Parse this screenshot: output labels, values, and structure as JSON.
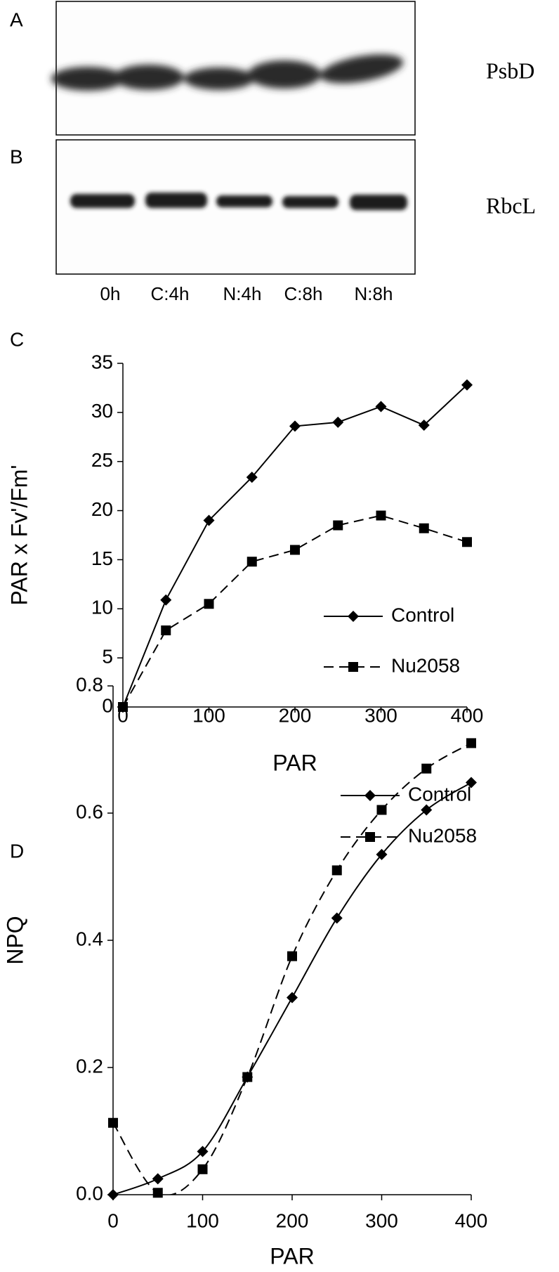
{
  "blots": {
    "panels": [
      {
        "label": "A",
        "protein": "PsbD"
      },
      {
        "label": "B",
        "protein": "RbcL"
      }
    ],
    "lanes": [
      "0h",
      "C:4h",
      "N:4h",
      "C:8h",
      "N:8h"
    ]
  },
  "chart_data": [
    {
      "type": "line",
      "panel": "C",
      "y_label": "PAR x Fv'/Fm'",
      "x_label": "PAR",
      "x": [
        0,
        50,
        100,
        150,
        200,
        250,
        300,
        350,
        400
      ],
      "series": [
        {
          "name": "Control",
          "color": "#000000",
          "marker": "diamond",
          "dash": "solid",
          "values": [
            0,
            10.9,
            19.0,
            23.4,
            28.6,
            29.0,
            30.6,
            28.7,
            32.8
          ]
        },
        {
          "name": "Nu2058",
          "color": "#000000",
          "marker": "square",
          "dash": "dashed",
          "values": [
            0,
            7.8,
            10.5,
            14.8,
            16.0,
            18.5,
            19.5,
            18.2,
            16.8
          ]
        }
      ],
      "xlim": [
        0,
        400
      ],
      "xticks": [
        0,
        100,
        200,
        300,
        400
      ],
      "ylim": [
        0,
        35
      ],
      "yticks": [
        0,
        5,
        10,
        15,
        20,
        25,
        30,
        35
      ],
      "smooth": false,
      "legend": "lower right"
    },
    {
      "type": "line",
      "panel": "D",
      "y_label": "NPQ",
      "x_label": "PAR",
      "x": [
        0,
        50,
        100,
        150,
        200,
        250,
        300,
        350,
        400
      ],
      "series": [
        {
          "name": "Control",
          "color": "#000000",
          "marker": "diamond",
          "dash": "solid",
          "values": [
            0,
            0.025,
            0.068,
            0.185,
            0.31,
            0.435,
            0.535,
            0.605,
            0.648
          ]
        },
        {
          "name": "Nu2058",
          "color": "#000000",
          "marker": "square",
          "dash": "dashed",
          "values": [
            0.113,
            0.003,
            0.04,
            0.185,
            0.375,
            0.51,
            0.605,
            0.67,
            0.71
          ]
        }
      ],
      "xlim": [
        0,
        400
      ],
      "xticks": [
        0,
        100,
        200,
        300,
        400
      ],
      "ylim": [
        0,
        0.8
      ],
      "yticks": [
        {
          "value": 0,
          "label": "0.0"
        },
        0.2,
        0.4,
        0.6,
        0.8
      ],
      "smooth": true,
      "legend": "lower right"
    }
  ]
}
